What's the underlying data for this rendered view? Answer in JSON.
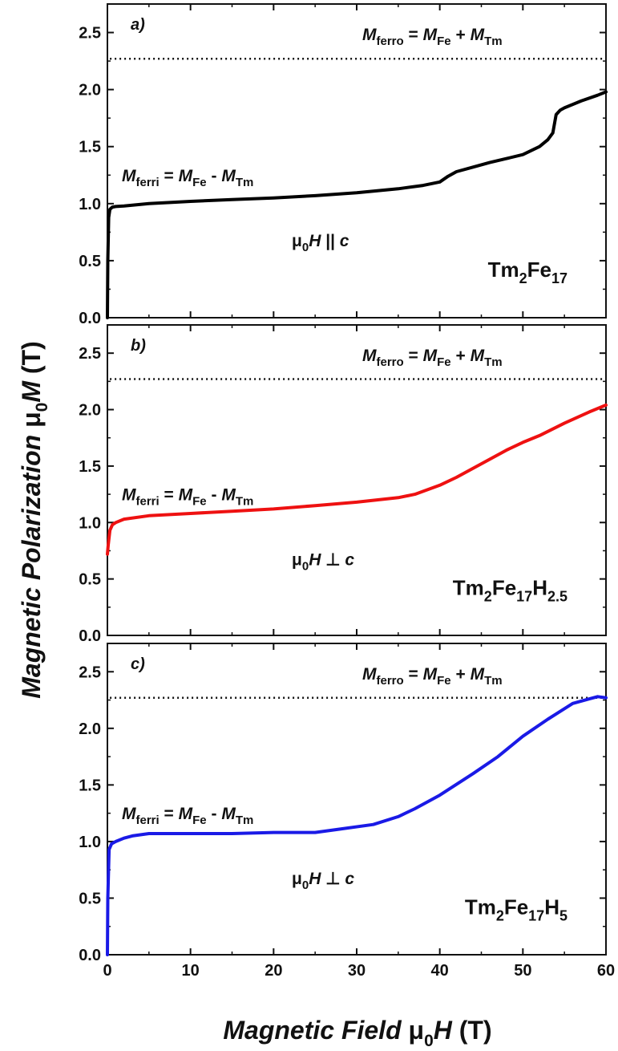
{
  "figure": {
    "y_axis_label": {
      "italic": "Magnetic Polarization ",
      "mu": "μ",
      "sub": "0",
      "var": "M",
      "unit": " (T)"
    },
    "x_axis_label": {
      "italic": "Magnetic Field ",
      "mu": "μ",
      "sub": "0",
      "var": "H",
      "unit": " (T)"
    }
  },
  "chart_data": [
    {
      "type": "line",
      "panel_label": "a)",
      "xlim": [
        0,
        60
      ],
      "ylim": [
        0,
        2.75
      ],
      "x_ticks": [
        0,
        10,
        20,
        30,
        40,
        50,
        60
      ],
      "y_ticks": [
        0.0,
        0.5,
        1.0,
        1.5,
        2.0,
        2.5
      ],
      "y_tick_labels": [
        "0.0",
        "0.5",
        "1.0",
        "1.5",
        "2.0",
        "2.5"
      ],
      "x_ticks_labeled": false,
      "reference_line": {
        "y": 2.27,
        "style": "dotted",
        "from_x": 0.3
      },
      "annotations": {
        "ferro": {
          "M": "M",
          "ferro": "ferro",
          "eq": " = ",
          "M2": "M",
          "Fe": "Fe",
          "plus": " + ",
          "M3": "M",
          "Tm": "Tm"
        },
        "ferri": {
          "M": "M",
          "ferri": "ferri",
          "eq": " = ",
          "M2": "M",
          "Fe": "Fe",
          "minus": " - ",
          "M3": "M",
          "Tm": "Tm"
        },
        "field": {
          "mu": "μ",
          "sub": "0",
          "H": "H",
          "rel": " || ",
          "c": "c"
        },
        "sample": [
          {
            "t": "Tm",
            "sub": false
          },
          {
            "t": "2",
            "sub": true
          },
          {
            "t": "Fe",
            "sub": false
          },
          {
            "t": "17",
            "sub": true
          }
        ]
      },
      "series": [
        {
          "color": "#000000",
          "x": [
            0,
            0.05,
            0.15,
            0.3,
            0.6,
            1,
            2,
            5,
            10,
            15,
            20,
            25,
            30,
            35,
            38,
            40,
            41,
            42,
            44,
            46,
            48,
            50,
            52,
            53,
            53.6,
            54,
            54.5,
            55,
            57,
            59,
            60
          ],
          "y": [
            0,
            0.5,
            0.88,
            0.95,
            0.97,
            0.975,
            0.98,
            1.0,
            1.02,
            1.035,
            1.05,
            1.07,
            1.095,
            1.13,
            1.16,
            1.19,
            1.24,
            1.28,
            1.32,
            1.36,
            1.395,
            1.43,
            1.5,
            1.56,
            1.62,
            1.78,
            1.82,
            1.84,
            1.9,
            1.95,
            1.98
          ]
        }
      ]
    },
    {
      "type": "line",
      "panel_label": "b)",
      "xlim": [
        0,
        60
      ],
      "ylim": [
        0,
        2.75
      ],
      "x_ticks": [
        0,
        10,
        20,
        30,
        40,
        50,
        60
      ],
      "y_ticks": [
        0.0,
        0.5,
        1.0,
        1.5,
        2.0,
        2.5
      ],
      "y_tick_labels": [
        "0.0",
        "0.5",
        "1.0",
        "1.5",
        "2.0",
        "2.5"
      ],
      "x_ticks_labeled": false,
      "reference_line": {
        "y": 2.27,
        "style": "dotted",
        "from_x": 0.3
      },
      "annotations": {
        "ferro": {
          "M": "M",
          "ferro": "ferro",
          "eq": " = ",
          "M2": "M",
          "Fe": "Fe",
          "plus": " + ",
          "M3": "M",
          "Tm": "Tm"
        },
        "ferri": {
          "M": "M",
          "ferri": "ferri",
          "eq": " = ",
          "M2": "M",
          "Fe": "Fe",
          "minus": " - ",
          "M3": "M",
          "Tm": "Tm"
        },
        "field": {
          "mu": "μ",
          "sub": "0",
          "H": "H",
          "rel": " ⊥ ",
          "c": "c"
        },
        "sample": [
          {
            "t": "Tm",
            "sub": false
          },
          {
            "t": "2",
            "sub": true
          },
          {
            "t": "Fe",
            "sub": false
          },
          {
            "t": "17",
            "sub": true
          },
          {
            "t": "H",
            "sub": false
          },
          {
            "t": "2.5",
            "sub": true
          }
        ]
      },
      "series": [
        {
          "color": "#ee1111",
          "x": [
            0,
            0.1,
            0.3,
            0.6,
            1,
            2,
            5,
            10,
            15,
            20,
            25,
            30,
            35,
            37,
            40,
            42,
            45,
            48,
            50,
            52,
            55,
            58,
            60
          ],
          "y": [
            0.72,
            0.8,
            0.93,
            0.98,
            1.0,
            1.03,
            1.06,
            1.08,
            1.1,
            1.12,
            1.15,
            1.18,
            1.22,
            1.25,
            1.33,
            1.4,
            1.52,
            1.64,
            1.71,
            1.77,
            1.88,
            1.98,
            2.04
          ]
        }
      ]
    },
    {
      "type": "line",
      "panel_label": "c)",
      "xlim": [
        0,
        60
      ],
      "ylim": [
        0,
        2.75
      ],
      "x_ticks": [
        0,
        10,
        20,
        30,
        40,
        50,
        60
      ],
      "y_ticks": [
        0.0,
        0.5,
        1.0,
        1.5,
        2.0,
        2.5
      ],
      "y_tick_labels": [
        "0.0",
        "0.5",
        "1.0",
        "1.5",
        "2.0",
        "2.5"
      ],
      "x_tick_labels": [
        "0",
        "10",
        "20",
        "30",
        "40",
        "50",
        "60"
      ],
      "x_ticks_labeled": true,
      "reference_line": {
        "y": 2.27,
        "style": "dotted",
        "from_x": 0.3
      },
      "annotations": {
        "ferro": {
          "M": "M",
          "ferro": "ferro",
          "eq": " = ",
          "M2": "M",
          "Fe": "Fe",
          "plus": " + ",
          "M3": "M",
          "Tm": "Tm"
        },
        "ferri": {
          "M": "M",
          "ferri": "ferri",
          "eq": " = ",
          "M2": "M",
          "Fe": "Fe",
          "minus": " - ",
          "M3": "M",
          "Tm": "Tm"
        },
        "field": {
          "mu": "μ",
          "sub": "0",
          "H": "H",
          "rel": " ⊥ ",
          "c": "c"
        },
        "sample": [
          {
            "t": "Tm",
            "sub": false
          },
          {
            "t": "2",
            "sub": true
          },
          {
            "t": "Fe",
            "sub": false
          },
          {
            "t": "17",
            "sub": true
          },
          {
            "t": "H",
            "sub": false
          },
          {
            "t": "5",
            "sub": true
          }
        ]
      },
      "series": [
        {
          "color": "#1a1ae6",
          "x": [
            0,
            0.05,
            0.2,
            0.5,
            1,
            2,
            3,
            5,
            10,
            15,
            20,
            25,
            28,
            32,
            35,
            37,
            40,
            44,
            47,
            50,
            53,
            56,
            58,
            59,
            60
          ],
          "y": [
            0,
            0.5,
            0.93,
            0.98,
            1.0,
            1.03,
            1.05,
            1.07,
            1.07,
            1.07,
            1.08,
            1.08,
            1.11,
            1.15,
            1.22,
            1.29,
            1.41,
            1.6,
            1.75,
            1.93,
            2.08,
            2.22,
            2.26,
            2.28,
            2.27
          ]
        }
      ]
    }
  ]
}
